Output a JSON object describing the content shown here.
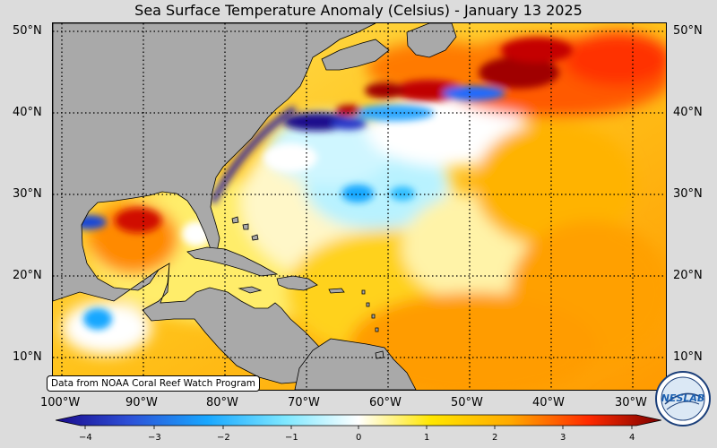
{
  "title": "Sea Surface Temperature Anomaly (Celsius) - January 13 2025",
  "latitude_labels": [
    "50°N",
    "40°N",
    "30°N",
    "20°N",
    "10°N"
  ],
  "longitude_labels": [
    "100°W",
    "90°W",
    "80°W",
    "70°W",
    "60°W",
    "50°W",
    "40°W",
    "30°W"
  ],
  "credit": "Data from NOAA Coral Reef Watch Program",
  "colorbar": {
    "ticks": [
      "−4",
      "−3",
      "−2",
      "−1",
      "0",
      "1",
      "2",
      "3",
      "4"
    ],
    "range": [
      -4,
      4
    ]
  },
  "logo_text": "NESLAB",
  "colors": {
    "land": "#a9a9a9",
    "coast": "#000000",
    "background": "#dcdcdc",
    "anomaly_scale": [
      "#1a0a8c",
      "#2d4fd6",
      "#18a7ff",
      "#7fe8ff",
      "#ffffff",
      "#ffe600",
      "#ffaa00",
      "#ff4c00",
      "#b80000",
      "#7a0000"
    ]
  }
}
